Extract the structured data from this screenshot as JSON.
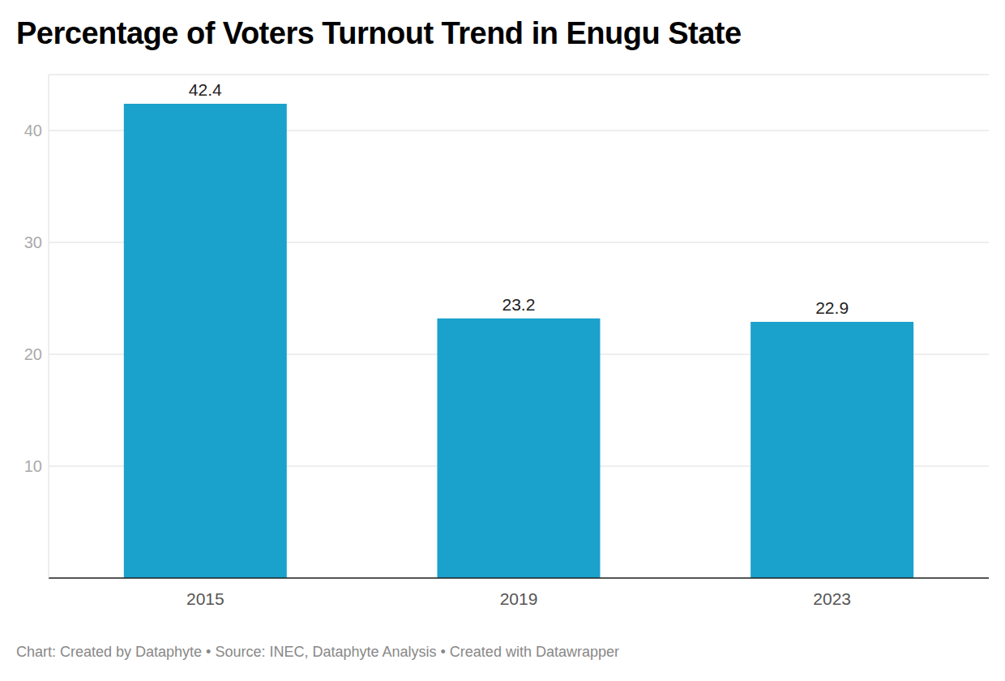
{
  "chart_data": {
    "type": "bar",
    "title": "Percentage of Voters Turnout Trend in Enugu State",
    "source": "Chart: Created by Dataphyte • Source: INEC, Dataphyte Analysis • Created with Datawrapper",
    "categories": [
      "2015",
      "2019",
      "2023"
    ],
    "values": [
      42.4,
      23.2,
      22.9
    ],
    "color": "#1aa1cc",
    "ylim": [
      0,
      45
    ],
    "yticks": [
      10,
      20,
      30,
      40
    ],
    "grid": true,
    "data_labels": true
  }
}
